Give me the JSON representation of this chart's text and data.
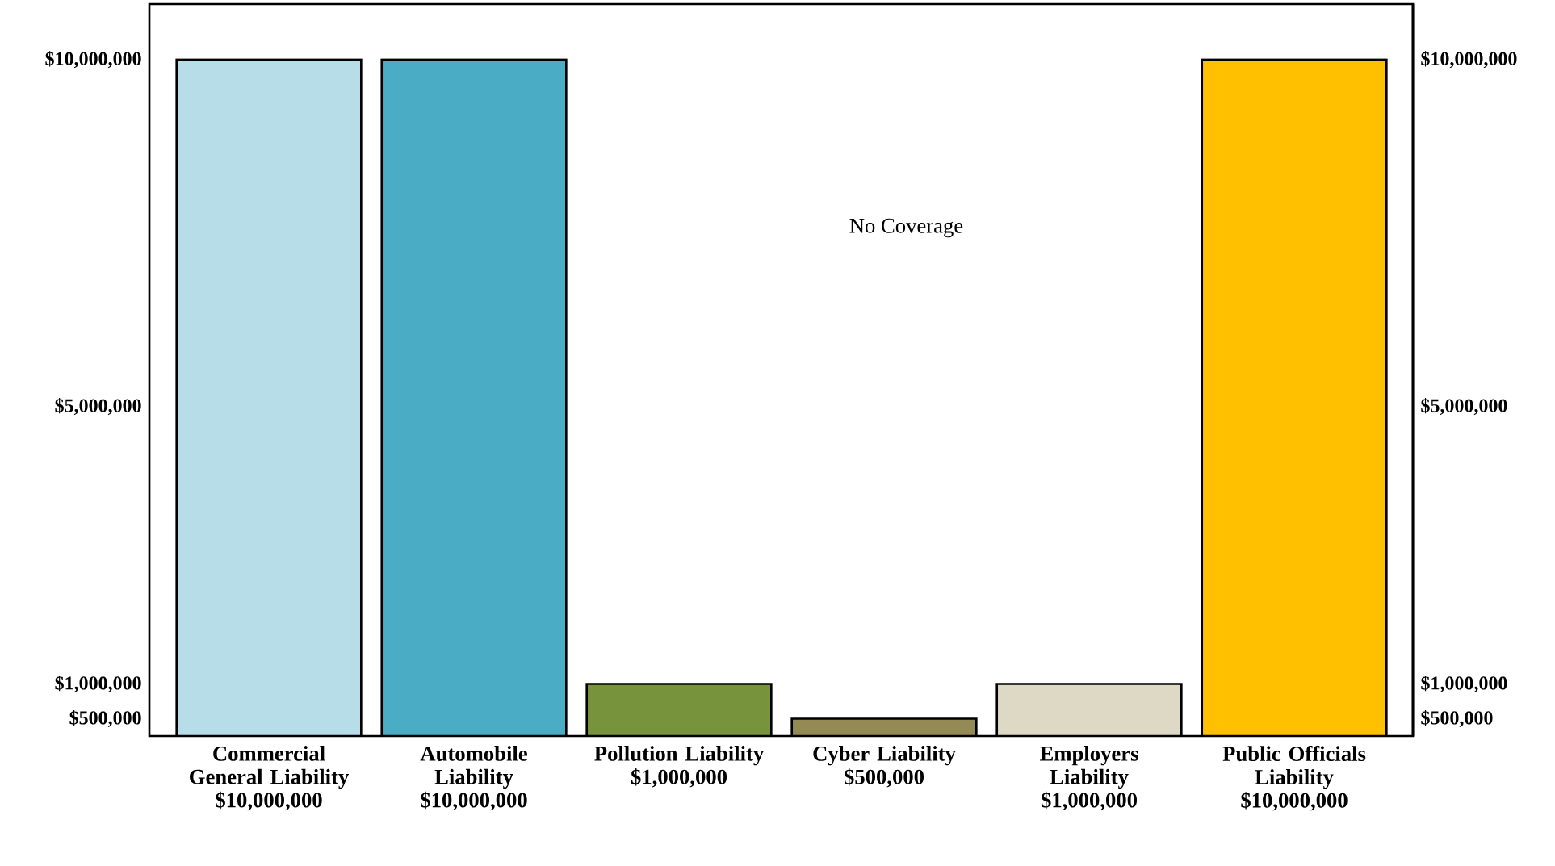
{
  "chart_data": {
    "type": "bar",
    "categories": [
      "Commercial General Liability",
      "Automobile Liability",
      "Pollution Liability",
      "Cyber Liability",
      "Employers Liability",
      "Public Officials Liability"
    ],
    "values": [
      10000000,
      10000000,
      1000000,
      500000,
      1000000,
      10000000
    ],
    "colors": [
      "#b7dde8",
      "#4bacc6",
      "#77933c",
      "#948a54",
      "#ddd9c4",
      "#ffc000"
    ],
    "value_labels": [
      "$10,000,000",
      "$10,000,000",
      "$1,000,000",
      "$500,000",
      "$1,000,000",
      "$10,000,000"
    ],
    "ylim": [
      250000,
      10800000
    ],
    "yticks": [
      {
        "value": 500000,
        "label": "$500,000"
      },
      {
        "value": 1000000,
        "label": "$1,000,000"
      },
      {
        "value": 5000000,
        "label": "$5,000,000"
      },
      {
        "value": 10000000,
        "label": "$10,000,000"
      }
    ],
    "y2lim": [
      250000,
      10800000
    ],
    "y2ticks": [
      {
        "value": 500000,
        "label": "$500,000"
      },
      {
        "value": 1000000,
        "label": "$1,000,000"
      },
      {
        "value": 5000000,
        "label": "$5,000,000"
      },
      {
        "value": 10000000,
        "label": "$10,000,000"
      }
    ],
    "annotations": [
      "No Coverage"
    ],
    "grid": false
  }
}
